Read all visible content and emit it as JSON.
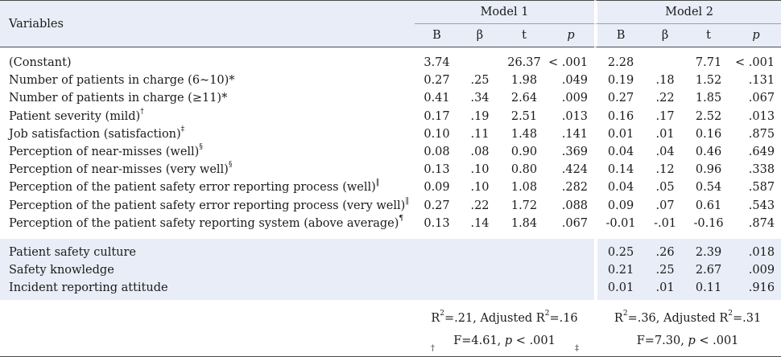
{
  "header": {
    "variables_label": "Variables",
    "model1_label": "Model 1",
    "model2_label": "Model 2",
    "columns": [
      "B",
      "β",
      "t",
      "p"
    ]
  },
  "rows": [
    {
      "label": "(Constant)",
      "sup": "",
      "m1": [
        "3.74",
        "",
        "26.37",
        "< .001"
      ],
      "m2": [
        "2.28",
        "",
        "7.71",
        "< .001"
      ]
    },
    {
      "label": "Number of patients in charge (6~10)*",
      "sup": "",
      "m1": [
        "0.27",
        ".25",
        "1.98",
        ".049"
      ],
      "m2": [
        "0.19",
        ".18",
        "1.52",
        ".131"
      ]
    },
    {
      "label": "Number of patients in charge (≥11)*",
      "sup": "",
      "m1": [
        "0.41",
        ".34",
        "2.64",
        ".009"
      ],
      "m2": [
        "0.27",
        ".22",
        "1.85",
        ".067"
      ]
    },
    {
      "label": "Patient severity (mild)",
      "sup": "†",
      "m1": [
        "0.17",
        ".19",
        "2.51",
        ".013"
      ],
      "m2": [
        "0.16",
        ".17",
        "2.52",
        ".013"
      ]
    },
    {
      "label": "Job satisfaction (satisfaction)",
      "sup": "‡",
      "m1": [
        "0.10",
        ".11",
        "1.48",
        ".141"
      ],
      "m2": [
        "0.01",
        ".01",
        "0.16",
        ".875"
      ]
    },
    {
      "label": "Perception of near-misses (well)",
      "sup": "§",
      "m1": [
        "0.08",
        ".08",
        "0.90",
        ".369"
      ],
      "m2": [
        "0.04",
        ".04",
        "0.46",
        ".649"
      ]
    },
    {
      "label": "Perception of near-misses (very well)",
      "sup": "§",
      "m1": [
        "0.13",
        ".10",
        "0.80",
        ".424"
      ],
      "m2": [
        "0.14",
        ".12",
        "0.96",
        ".338"
      ]
    },
    {
      "label": "Perception of the patient safety error reporting process (well)",
      "sup": "‖",
      "m1": [
        "0.09",
        ".10",
        "1.08",
        ".282"
      ],
      "m2": [
        "0.04",
        ".05",
        "0.54",
        ".587"
      ]
    },
    {
      "label": "Perception of the patient safety error reporting process (very well)",
      "sup": "‖",
      "m1": [
        "0.27",
        ".22",
        "1.72",
        ".088"
      ],
      "m2": [
        "0.09",
        ".07",
        "0.61",
        ".543"
      ]
    },
    {
      "label": "Perception of the patient safety reporting system (above average)",
      "sup": "¶",
      "m1": [
        "0.13",
        ".14",
        "1.84",
        ".067"
      ],
      "m2": [
        "-0.01",
        "-.01",
        "-0.16",
        ".874"
      ]
    }
  ],
  "block2": [
    {
      "label": "Patient safety culture",
      "m2": [
        "0.25",
        ".26",
        "2.39",
        ".018"
      ]
    },
    {
      "label": "Safety knowledge",
      "m2": [
        "0.21",
        ".25",
        "2.67",
        ".009"
      ]
    },
    {
      "label": "Incident reporting attitude",
      "m2": [
        "0.01",
        ".01",
        "0.11",
        ".916"
      ]
    }
  ],
  "fit": {
    "m1_line1_a": "R",
    "m1_line1_b": "=.21,  Adjusted R",
    "m1_line1_c": "=.16",
    "m1_line2_a": "F=4.61,  ",
    "m1_line2_p": "p",
    "m1_line2_b": " < .001",
    "m2_line1_a": "R",
    "m2_line1_b": "=.36,  Adjusted R",
    "m2_line1_c": "=.31",
    "m2_line2_a": "F=7.30,  ",
    "m2_line2_p": "p",
    "m2_line2_b": " < .001",
    "sq": "2"
  },
  "footnote_cut": [
    "†",
    "‡"
  ]
}
